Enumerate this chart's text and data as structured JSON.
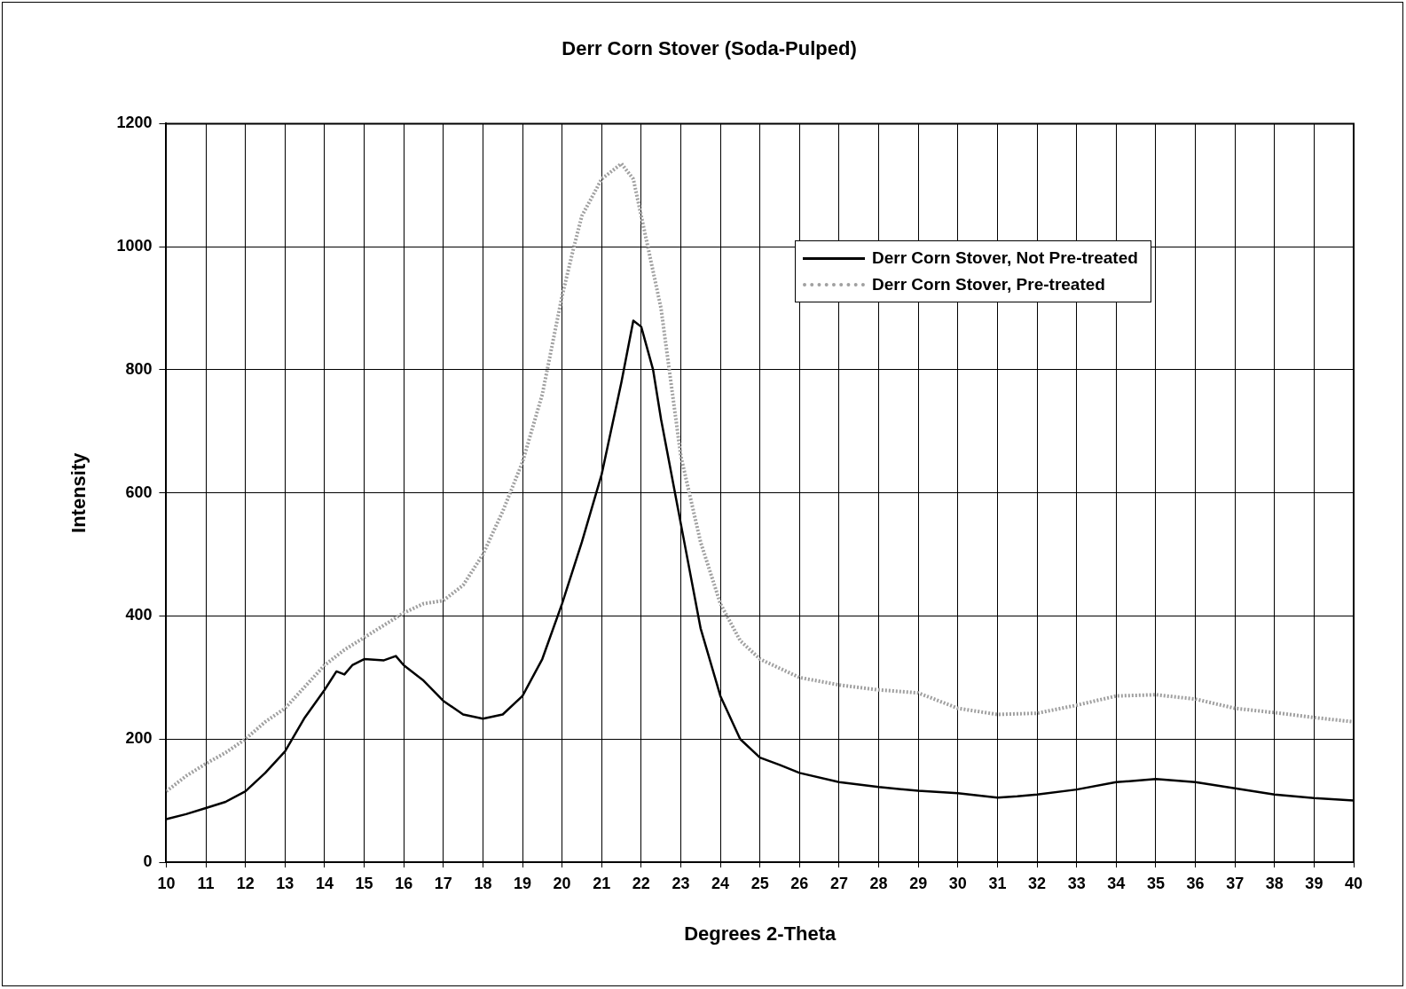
{
  "chart_data": {
    "type": "line",
    "title": "Derr Corn Stover (Soda-Pulped)",
    "xlabel": "Degrees 2-Theta",
    "ylabel": "Intensity",
    "xlim": [
      10,
      40
    ],
    "xticks": [
      10,
      11,
      12,
      13,
      14,
      15,
      16,
      17,
      18,
      19,
      20,
      21,
      22,
      23,
      24,
      25,
      26,
      27,
      28,
      29,
      30,
      31,
      32,
      33,
      34,
      35,
      36,
      37,
      38,
      39,
      40
    ],
    "ylim": [
      0,
      1200
    ],
    "yticks": [
      0,
      200,
      400,
      600,
      800,
      1000,
      1200
    ],
    "grid": true,
    "legend": "top right",
    "marker": "none",
    "series": [
      {
        "name": "Derr Corn Stover, Not Pre-treated",
        "color": "#000000",
        "line_style": "solid",
        "x": [
          10,
          10.5,
          11,
          11.5,
          12,
          12.5,
          13,
          13.5,
          14,
          14.3,
          14.5,
          14.7,
          15,
          15.5,
          15.8,
          16,
          16.5,
          17,
          17.5,
          18,
          18.5,
          19,
          19.5,
          20,
          20.5,
          21,
          21.5,
          21.8,
          22,
          22.3,
          22.5,
          23,
          23.5,
          24,
          24.5,
          25,
          25.5,
          26,
          27,
          28,
          29,
          30,
          31,
          31.5,
          32,
          33,
          34,
          35,
          36,
          37,
          38,
          39,
          40
        ],
        "values": [
          70,
          78,
          88,
          98,
          115,
          145,
          180,
          235,
          280,
          310,
          305,
          320,
          330,
          328,
          335,
          320,
          295,
          262,
          240,
          233,
          240,
          270,
          330,
          420,
          520,
          630,
          780,
          880,
          870,
          800,
          720,
          550,
          380,
          270,
          200,
          170,
          158,
          145,
          130,
          122,
          116,
          112,
          105,
          107,
          110,
          118,
          130,
          135,
          130,
          120,
          110,
          104,
          100
        ]
      },
      {
        "name": "Derr Corn Stover, Pre-treated",
        "color": "#a0a0a0",
        "line_style": "dotted",
        "x": [
          10,
          10.5,
          11,
          11.5,
          12,
          12.5,
          13,
          13.5,
          14,
          14.5,
          15,
          15.5,
          16,
          16.5,
          17,
          17.5,
          18,
          18.5,
          19,
          19.5,
          20,
          20.3,
          20.5,
          21,
          21.5,
          21.8,
          22,
          22.5,
          23,
          23.5,
          24,
          24.5,
          25,
          25.5,
          26,
          27,
          28,
          29,
          30,
          31,
          32,
          33,
          34,
          35,
          36,
          37,
          38,
          39,
          40
        ],
        "values": [
          115,
          140,
          160,
          178,
          200,
          228,
          250,
          285,
          320,
          345,
          365,
          385,
          405,
          420,
          425,
          450,
          500,
          570,
          650,
          760,
          920,
          1000,
          1050,
          1110,
          1135,
          1110,
          1050,
          900,
          660,
          520,
          420,
          360,
          330,
          315,
          300,
          288,
          280,
          275,
          250,
          240,
          242,
          255,
          270,
          272,
          265,
          250,
          243,
          235,
          228
        ]
      }
    ]
  }
}
